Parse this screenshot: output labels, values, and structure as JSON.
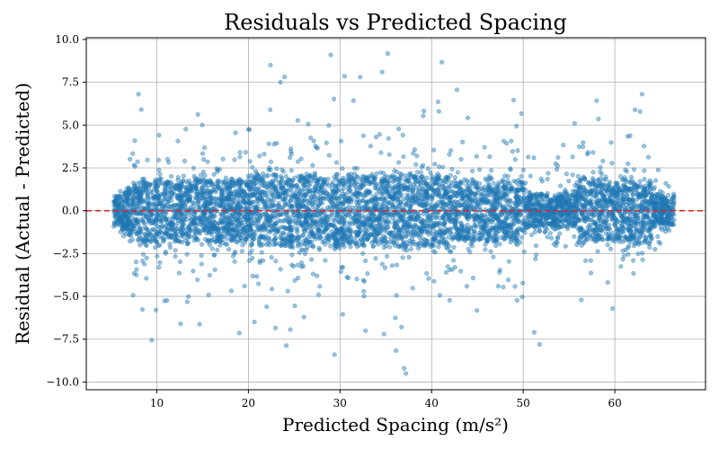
{
  "chart_data": {
    "type": "scatter",
    "title": "Residuals vs Predicted Spacing",
    "xlabel": "Predicted Spacing (m/s²)",
    "ylabel": "Residual (Actual - Predicted)",
    "xlim": [
      2.3,
      69.9
    ],
    "ylim": [
      -10.45,
      10.1
    ],
    "xticks": [
      10,
      20,
      30,
      40,
      50,
      60
    ],
    "yticks": [
      -10.0,
      -7.5,
      -5.0,
      -2.5,
      0.0,
      2.5,
      5.0,
      7.5,
      10.0
    ],
    "ytick_labels": [
      "−10.0",
      "−7.5",
      "−5.0",
      "−2.5",
      "0.0",
      "2.5",
      "5.0",
      "7.5",
      "10.0"
    ],
    "grid": true,
    "reference_line": {
      "y": 0,
      "style": "dashed",
      "color": "#d62728"
    },
    "point_color": "#1f77b4",
    "x_range_of_points": [
      5.3,
      66.5
    ],
    "residual_spread_core": 2.0,
    "notable_points": [
      {
        "x": 29.0,
        "y": 9.1
      },
      {
        "x": 22.4,
        "y": 8.5
      },
      {
        "x": 34.6,
        "y": 8.1
      },
      {
        "x": 30.5,
        "y": 7.85
      },
      {
        "x": 32.2,
        "y": 7.8
      },
      {
        "x": 23.5,
        "y": 7.5
      },
      {
        "x": 29.4,
        "y": -8.4
      },
      {
        "x": 37.0,
        "y": -9.2
      },
      {
        "x": 37.2,
        "y": -9.5
      },
      {
        "x": 34.8,
        "y": -7.2
      },
      {
        "x": 12.6,
        "y": -6.6
      },
      {
        "x": 51.2,
        "y": -7.1
      },
      {
        "x": 51.8,
        "y": -7.8
      },
      {
        "x": 55.6,
        "y": 5.1
      },
      {
        "x": 8.3,
        "y": 5.9
      },
      {
        "x": 40.8,
        "y": 5.8
      }
    ]
  }
}
